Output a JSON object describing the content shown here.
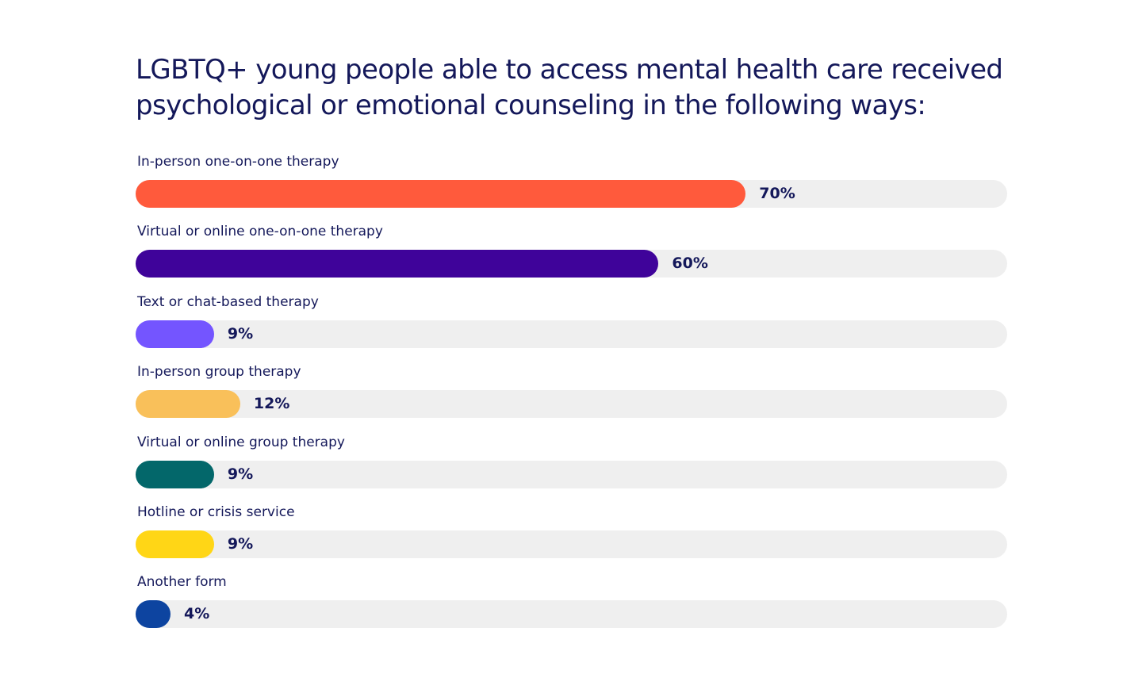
{
  "chart_data": {
    "type": "bar",
    "orientation": "horizontal",
    "title": "LGBTQ+ young people able to access mental health care received psychological or emotional counseling in the following ways:",
    "xlim": [
      0,
      100
    ],
    "grid": false,
    "categories": [
      "In-person one-on-one therapy",
      "Virtual or online one-on-one therapy",
      "Text or chat-based therapy",
      "In-person group therapy",
      "Virtual or online group therapy",
      "Hotline or crisis service",
      "Another form"
    ],
    "values": [
      70,
      60,
      9,
      12,
      9,
      9,
      4
    ],
    "value_labels": [
      "70%",
      "60%",
      "9%",
      "12%",
      "9%",
      "9%",
      "4%"
    ],
    "colors": [
      "#ff5a3c",
      "#3f039a",
      "#7455ff",
      "#f9c05a",
      "#03676a",
      "#ffd616",
      "#0d44a0"
    ],
    "track_color": "#efefef"
  }
}
